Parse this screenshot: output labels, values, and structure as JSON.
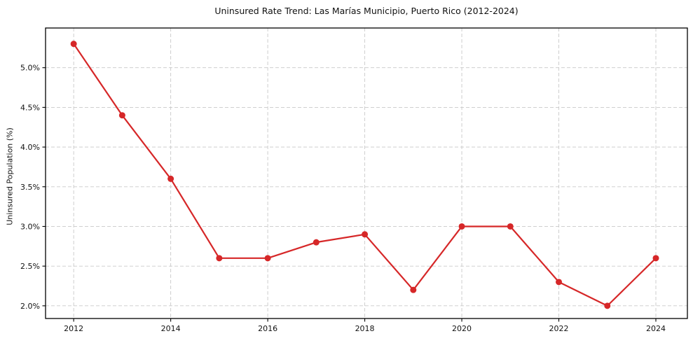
{
  "figure": {
    "background": "#ffffff"
  },
  "chart_data": {
    "type": "line",
    "title": "Uninsured Rate Trend: Las Marías Municipio, Puerto Rico (2012-2024)",
    "xlabel": "",
    "ylabel": "Uninsured Population (%)",
    "x": [
      2012,
      2013,
      2014,
      2015,
      2016,
      2017,
      2018,
      2019,
      2020,
      2021,
      2022,
      2023,
      2024
    ],
    "values": [
      5.3,
      4.4,
      3.6,
      2.6,
      2.6,
      2.8,
      2.9,
      2.2,
      3.0,
      3.0,
      2.3,
      2.0,
      2.6
    ],
    "xlim": [
      2011.42,
      2024.65
    ],
    "ylim": [
      1.84,
      5.5
    ],
    "xticks": [
      2012,
      2014,
      2016,
      2018,
      2020,
      2022,
      2024
    ],
    "yticks": [
      2.0,
      2.5,
      3.0,
      3.5,
      4.0,
      4.5,
      5.0
    ],
    "ytick_suffix": "%",
    "ytick_decimals": 1,
    "grid": "dashed",
    "legend": "none",
    "line_color": "#d62728",
    "marker": "circle",
    "marker_radius": 4.5,
    "line_width": 2.2,
    "grid_color": "#c9c9c9",
    "frame_color": "#000000",
    "tick_color": "#000000"
  }
}
